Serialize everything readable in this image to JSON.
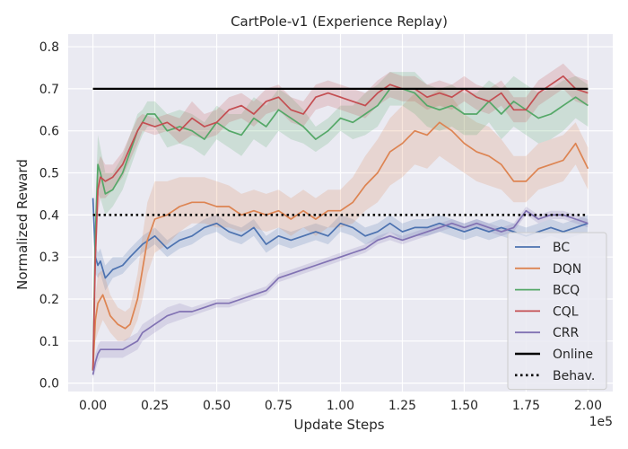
{
  "chart_data": {
    "type": "line",
    "title": "CartPole-v1 (Experience Replay)",
    "xlabel": "Update Steps",
    "ylabel": "Normalized Reward",
    "x_multiplier_label": "1e5",
    "xlim": [
      -10000,
      210000
    ],
    "ylim": [
      -0.02,
      0.83
    ],
    "x_ticks": [
      0,
      25000,
      50000,
      75000,
      100000,
      125000,
      150000,
      175000,
      200000
    ],
    "x_tick_labels": [
      "0.00",
      "0.25",
      "0.50",
      "0.75",
      "1.00",
      "1.25",
      "1.50",
      "1.75",
      "2.00"
    ],
    "y_ticks": [
      0.0,
      0.1,
      0.2,
      0.3,
      0.4,
      0.5,
      0.6,
      0.7,
      0.8
    ],
    "y_tick_labels": [
      "0.0",
      "0.1",
      "0.2",
      "0.3",
      "0.4",
      "0.5",
      "0.6",
      "0.7",
      "0.8"
    ],
    "grid": true,
    "legend_position": "lower-right",
    "series": [
      {
        "name": "BC",
        "color": "#4c72b0",
        "x": [
          0,
          1000,
          2000,
          3000,
          5000,
          8000,
          12000,
          15000,
          20000,
          25000,
          30000,
          35000,
          40000,
          45000,
          50000,
          55000,
          60000,
          65000,
          70000,
          75000,
          80000,
          85000,
          90000,
          95000,
          100000,
          105000,
          110000,
          115000,
          120000,
          125000,
          130000,
          135000,
          140000,
          145000,
          150000,
          155000,
          160000,
          165000,
          170000,
          175000,
          180000,
          185000,
          190000,
          195000,
          200000
        ],
        "y": [
          0.44,
          0.3,
          0.28,
          0.29,
          0.25,
          0.27,
          0.28,
          0.3,
          0.33,
          0.35,
          0.32,
          0.34,
          0.35,
          0.37,
          0.38,
          0.36,
          0.35,
          0.37,
          0.33,
          0.35,
          0.34,
          0.35,
          0.36,
          0.35,
          0.38,
          0.37,
          0.35,
          0.36,
          0.38,
          0.36,
          0.37,
          0.37,
          0.38,
          0.37,
          0.36,
          0.37,
          0.36,
          0.37,
          0.36,
          0.35,
          0.36,
          0.37,
          0.36,
          0.37,
          0.38
        ],
        "lower": [
          0.4,
          0.26,
          0.25,
          0.26,
          0.22,
          0.25,
          0.26,
          0.28,
          0.31,
          0.33,
          0.3,
          0.32,
          0.33,
          0.35,
          0.36,
          0.34,
          0.33,
          0.35,
          0.31,
          0.33,
          0.32,
          0.33,
          0.34,
          0.33,
          0.36,
          0.35,
          0.33,
          0.34,
          0.36,
          0.34,
          0.35,
          0.35,
          0.36,
          0.35,
          0.34,
          0.35,
          0.34,
          0.35,
          0.34,
          0.33,
          0.34,
          0.35,
          0.34,
          0.35,
          0.36
        ],
        "upper": [
          0.47,
          0.33,
          0.31,
          0.32,
          0.28,
          0.3,
          0.3,
          0.32,
          0.35,
          0.37,
          0.34,
          0.36,
          0.37,
          0.39,
          0.4,
          0.38,
          0.37,
          0.39,
          0.35,
          0.37,
          0.36,
          0.37,
          0.38,
          0.37,
          0.4,
          0.39,
          0.37,
          0.38,
          0.4,
          0.38,
          0.39,
          0.39,
          0.4,
          0.39,
          0.38,
          0.39,
          0.38,
          0.39,
          0.38,
          0.37,
          0.38,
          0.39,
          0.38,
          0.39,
          0.4
        ]
      },
      {
        "name": "DQN",
        "color": "#dd8452",
        "x": [
          0,
          1000,
          2000,
          4000,
          7000,
          10000,
          13000,
          15000,
          18000,
          20000,
          22000,
          25000,
          30000,
          35000,
          40000,
          45000,
          50000,
          55000,
          60000,
          65000,
          70000,
          75000,
          80000,
          85000,
          90000,
          95000,
          100000,
          105000,
          110000,
          115000,
          120000,
          125000,
          130000,
          135000,
          140000,
          145000,
          150000,
          155000,
          160000,
          165000,
          170000,
          175000,
          180000,
          185000,
          190000,
          195000,
          200000
        ],
        "y": [
          0.03,
          0.15,
          0.19,
          0.21,
          0.16,
          0.14,
          0.13,
          0.14,
          0.2,
          0.27,
          0.34,
          0.39,
          0.4,
          0.42,
          0.43,
          0.43,
          0.42,
          0.42,
          0.4,
          0.41,
          0.4,
          0.41,
          0.39,
          0.41,
          0.39,
          0.41,
          0.41,
          0.43,
          0.47,
          0.5,
          0.55,
          0.57,
          0.6,
          0.59,
          0.62,
          0.6,
          0.57,
          0.55,
          0.54,
          0.52,
          0.48,
          0.48,
          0.51,
          0.52,
          0.53,
          0.57,
          0.51
        ],
        "lower": [
          0.02,
          0.1,
          0.12,
          0.15,
          0.12,
          0.1,
          0.1,
          0.11,
          0.15,
          0.2,
          0.26,
          0.31,
          0.33,
          0.36,
          0.38,
          0.38,
          0.37,
          0.37,
          0.36,
          0.37,
          0.36,
          0.37,
          0.35,
          0.37,
          0.35,
          0.37,
          0.37,
          0.38,
          0.41,
          0.43,
          0.47,
          0.49,
          0.52,
          0.51,
          0.54,
          0.52,
          0.5,
          0.48,
          0.47,
          0.46,
          0.43,
          0.43,
          0.46,
          0.47,
          0.48,
          0.52,
          0.46
        ],
        "upper": [
          0.05,
          0.2,
          0.26,
          0.27,
          0.21,
          0.18,
          0.17,
          0.18,
          0.26,
          0.35,
          0.43,
          0.48,
          0.48,
          0.49,
          0.49,
          0.49,
          0.48,
          0.47,
          0.45,
          0.46,
          0.45,
          0.46,
          0.44,
          0.46,
          0.44,
          0.46,
          0.46,
          0.49,
          0.54,
          0.58,
          0.63,
          0.66,
          0.69,
          0.68,
          0.7,
          0.68,
          0.64,
          0.62,
          0.61,
          0.58,
          0.54,
          0.54,
          0.57,
          0.58,
          0.59,
          0.62,
          0.56
        ]
      },
      {
        "name": "BCQ",
        "color": "#55a868",
        "x": [
          0,
          1000,
          2000,
          3000,
          5000,
          8000,
          12000,
          15000,
          18000,
          20000,
          22000,
          25000,
          30000,
          35000,
          40000,
          45000,
          50000,
          55000,
          60000,
          65000,
          70000,
          75000,
          80000,
          85000,
          90000,
          95000,
          100000,
          105000,
          110000,
          115000,
          120000,
          125000,
          130000,
          135000,
          140000,
          145000,
          150000,
          155000,
          160000,
          165000,
          170000,
          175000,
          180000,
          185000,
          190000,
          195000,
          200000
        ],
        "y": [
          0.03,
          0.35,
          0.52,
          0.5,
          0.45,
          0.46,
          0.5,
          0.55,
          0.6,
          0.62,
          0.64,
          0.64,
          0.6,
          0.61,
          0.6,
          0.58,
          0.62,
          0.6,
          0.59,
          0.63,
          0.61,
          0.65,
          0.63,
          0.61,
          0.58,
          0.6,
          0.63,
          0.62,
          0.64,
          0.66,
          0.7,
          0.7,
          0.69,
          0.66,
          0.65,
          0.66,
          0.64,
          0.64,
          0.67,
          0.64,
          0.67,
          0.65,
          0.63,
          0.64,
          0.66,
          0.68,
          0.66
        ],
        "lower": [
          0.02,
          0.28,
          0.45,
          0.44,
          0.4,
          0.42,
          0.46,
          0.51,
          0.56,
          0.59,
          0.61,
          0.61,
          0.56,
          0.57,
          0.56,
          0.54,
          0.58,
          0.56,
          0.54,
          0.58,
          0.56,
          0.6,
          0.58,
          0.57,
          0.55,
          0.57,
          0.6,
          0.58,
          0.59,
          0.61,
          0.66,
          0.66,
          0.64,
          0.61,
          0.6,
          0.61,
          0.59,
          0.59,
          0.62,
          0.58,
          0.61,
          0.59,
          0.57,
          0.58,
          0.6,
          0.63,
          0.61
        ],
        "upper": [
          0.05,
          0.42,
          0.59,
          0.56,
          0.5,
          0.5,
          0.54,
          0.59,
          0.64,
          0.65,
          0.67,
          0.67,
          0.64,
          0.65,
          0.64,
          0.62,
          0.66,
          0.64,
          0.64,
          0.68,
          0.66,
          0.7,
          0.68,
          0.65,
          0.61,
          0.63,
          0.66,
          0.66,
          0.69,
          0.71,
          0.74,
          0.74,
          0.74,
          0.71,
          0.7,
          0.71,
          0.69,
          0.69,
          0.72,
          0.7,
          0.73,
          0.71,
          0.69,
          0.7,
          0.72,
          0.73,
          0.71
        ]
      },
      {
        "name": "CQL",
        "color": "#c44e52",
        "x": [
          0,
          1000,
          2000,
          3000,
          5000,
          8000,
          12000,
          15000,
          18000,
          20000,
          25000,
          30000,
          35000,
          40000,
          45000,
          50000,
          55000,
          60000,
          65000,
          70000,
          75000,
          80000,
          85000,
          90000,
          95000,
          100000,
          105000,
          110000,
          115000,
          120000,
          125000,
          130000,
          135000,
          140000,
          145000,
          150000,
          155000,
          160000,
          165000,
          170000,
          175000,
          180000,
          185000,
          190000,
          195000,
          200000
        ],
        "y": [
          0.03,
          0.3,
          0.46,
          0.49,
          0.48,
          0.49,
          0.52,
          0.56,
          0.6,
          0.62,
          0.61,
          0.62,
          0.6,
          0.63,
          0.61,
          0.62,
          0.65,
          0.66,
          0.64,
          0.67,
          0.68,
          0.65,
          0.64,
          0.68,
          0.69,
          0.68,
          0.67,
          0.66,
          0.69,
          0.71,
          0.7,
          0.7,
          0.68,
          0.69,
          0.68,
          0.7,
          0.68,
          0.67,
          0.69,
          0.65,
          0.65,
          0.69,
          0.71,
          0.73,
          0.7,
          0.69
        ],
        "lower": [
          0.02,
          0.24,
          0.4,
          0.44,
          0.44,
          0.46,
          0.49,
          0.53,
          0.57,
          0.6,
          0.59,
          0.6,
          0.57,
          0.59,
          0.58,
          0.59,
          0.62,
          0.63,
          0.61,
          0.64,
          0.65,
          0.62,
          0.61,
          0.65,
          0.66,
          0.65,
          0.64,
          0.63,
          0.66,
          0.68,
          0.67,
          0.67,
          0.65,
          0.66,
          0.65,
          0.67,
          0.65,
          0.64,
          0.66,
          0.62,
          0.62,
          0.66,
          0.68,
          0.7,
          0.67,
          0.66
        ],
        "upper": [
          0.05,
          0.36,
          0.52,
          0.54,
          0.52,
          0.52,
          0.55,
          0.59,
          0.63,
          0.64,
          0.63,
          0.64,
          0.63,
          0.67,
          0.64,
          0.65,
          0.68,
          0.69,
          0.67,
          0.7,
          0.71,
          0.68,
          0.67,
          0.71,
          0.72,
          0.71,
          0.7,
          0.69,
          0.72,
          0.74,
          0.73,
          0.73,
          0.71,
          0.72,
          0.71,
          0.73,
          0.71,
          0.7,
          0.72,
          0.68,
          0.68,
          0.72,
          0.74,
          0.76,
          0.73,
          0.72
        ]
      },
      {
        "name": "CRR",
        "color": "#8172b3",
        "x": [
          0,
          1000,
          2000,
          3000,
          5000,
          8000,
          12000,
          15000,
          18000,
          20000,
          25000,
          30000,
          35000,
          40000,
          45000,
          50000,
          55000,
          60000,
          65000,
          70000,
          75000,
          80000,
          85000,
          90000,
          95000,
          100000,
          105000,
          110000,
          115000,
          120000,
          125000,
          130000,
          135000,
          140000,
          145000,
          150000,
          155000,
          160000,
          165000,
          170000,
          175000,
          180000,
          185000,
          190000,
          195000,
          200000
        ],
        "y": [
          0.02,
          0.05,
          0.07,
          0.08,
          0.08,
          0.08,
          0.08,
          0.09,
          0.1,
          0.12,
          0.14,
          0.16,
          0.17,
          0.17,
          0.18,
          0.19,
          0.19,
          0.2,
          0.21,
          0.22,
          0.25,
          0.26,
          0.27,
          0.28,
          0.29,
          0.3,
          0.31,
          0.32,
          0.34,
          0.35,
          0.34,
          0.35,
          0.36,
          0.37,
          0.38,
          0.37,
          0.38,
          0.37,
          0.36,
          0.37,
          0.41,
          0.39,
          0.4,
          0.4,
          0.39,
          0.38
        ],
        "lower": [
          0.01,
          0.03,
          0.05,
          0.06,
          0.06,
          0.06,
          0.06,
          0.07,
          0.08,
          0.1,
          0.12,
          0.14,
          0.15,
          0.16,
          0.17,
          0.18,
          0.18,
          0.19,
          0.2,
          0.21,
          0.24,
          0.25,
          0.26,
          0.27,
          0.28,
          0.29,
          0.3,
          0.31,
          0.33,
          0.34,
          0.33,
          0.34,
          0.35,
          0.36,
          0.37,
          0.36,
          0.37,
          0.36,
          0.35,
          0.36,
          0.4,
          0.38,
          0.39,
          0.39,
          0.38,
          0.37
        ],
        "upper": [
          0.03,
          0.07,
          0.09,
          0.1,
          0.1,
          0.1,
          0.1,
          0.11,
          0.12,
          0.14,
          0.16,
          0.18,
          0.19,
          0.18,
          0.19,
          0.2,
          0.2,
          0.21,
          0.22,
          0.23,
          0.26,
          0.27,
          0.28,
          0.29,
          0.3,
          0.31,
          0.32,
          0.33,
          0.35,
          0.36,
          0.35,
          0.36,
          0.37,
          0.38,
          0.39,
          0.38,
          0.39,
          0.38,
          0.37,
          0.38,
          0.42,
          0.4,
          0.41,
          0.41,
          0.4,
          0.39
        ]
      },
      {
        "name": "Online",
        "color": "#000000",
        "style": "solid",
        "x": [
          0,
          200000
        ],
        "y": [
          0.7,
          0.7
        ]
      },
      {
        "name": "Behav.",
        "color": "#000000",
        "style": "dotted",
        "x": [
          0,
          200000
        ],
        "y": [
          0.4,
          0.4
        ]
      }
    ]
  }
}
